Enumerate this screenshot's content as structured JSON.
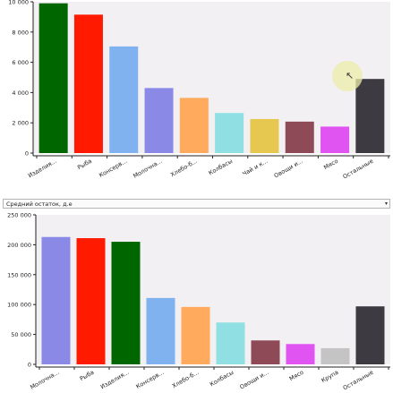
{
  "selector": {
    "label": "Средний остаток, д.е",
    "arrow": "▾"
  },
  "cursor": {
    "icon": "pointer-arrow-icon",
    "glyph": "↖"
  },
  "colors": {
    "plot_bg": "#f2f0f3",
    "axis": "#222222"
  },
  "chart_data": [
    {
      "type": "bar",
      "categories": [
        "Изделия...",
        "Рыба",
        "Консерв...",
        "Молочна...",
        "Хлебо-б...",
        "Колбасы",
        "Чай и к...",
        "Овощи и...",
        "Мясо",
        "Остальные"
      ],
      "values": [
        9900,
        9150,
        7050,
        4300,
        3650,
        2650,
        2250,
        2080,
        1750,
        4900
      ],
      "colors": [
        "#006600",
        "#ff1a00",
        "#7fb2ee",
        "#8a8ae6",
        "#ffaa5c",
        "#90dfe2",
        "#e6c850",
        "#8f4a58",
        "#e055f2",
        "#3d3b41"
      ],
      "yticks": [
        "0",
        "2 000",
        "4 000",
        "6 000",
        "8 000",
        "10 000"
      ],
      "ylim": [
        0,
        10000
      ],
      "grid": false,
      "legend": "none"
    },
    {
      "type": "bar",
      "categories": [
        "Молочна...",
        "Рыба",
        "Изделия...",
        "Консерв...",
        "Хлебо-б...",
        "Колбасы",
        "Овощи и...",
        "Мясо",
        "Крупа",
        "Остальные"
      ],
      "values": [
        213000,
        211000,
        205000,
        111000,
        96000,
        70000,
        40000,
        34000,
        27000,
        97000
      ],
      "colors": [
        "#8a8ae6",
        "#ff1a00",
        "#006600",
        "#7fb2ee",
        "#ffaa5c",
        "#90dfe2",
        "#8f4a58",
        "#e055f2",
        "#c4c4c4",
        "#3d3b41"
      ],
      "yticks": [
        "0",
        "50 000",
        "100 000",
        "150 000",
        "200 000",
        "250 000"
      ],
      "ylim": [
        0,
        250000
      ],
      "grid": false,
      "legend": "none"
    }
  ]
}
